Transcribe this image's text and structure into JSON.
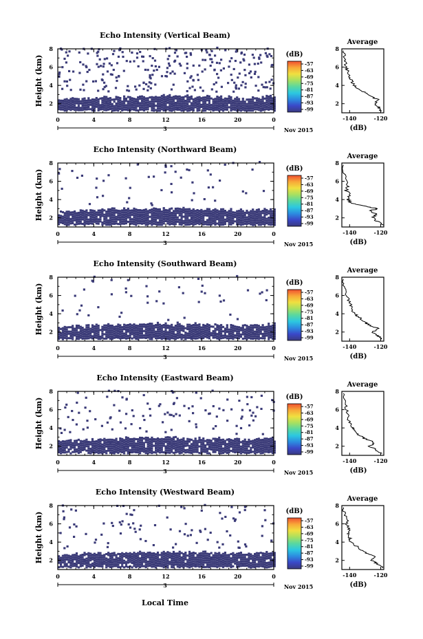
{
  "figure": {
    "xlabel": "Local Time",
    "date_label": "Nov 2015",
    "x_ticks": [
      "0",
      "4",
      "8",
      "12",
      "16",
      "20",
      "0"
    ],
    "day_label": "3",
    "y_ticks": [
      "2",
      "4",
      "6",
      "8"
    ],
    "cb_ticks": [
      "-57",
      "-63",
      "-69",
      "-75",
      "-81",
      "-87",
      "-93",
      "-99"
    ],
    "avg_x_ticks": [
      "-140",
      "-120"
    ],
    "colors": {
      "echo": "#3b3b78",
      "colorbar": [
        "#3a3a80",
        "#3a48c8",
        "#2c8ce0",
        "#2cc8e0",
        "#5ad8a0",
        "#a8e060",
        "#f0e040",
        "#f8a838",
        "#f05030"
      ]
    }
  },
  "chart_data": [
    {
      "type": "heatmap",
      "title": "Echo Intensity (Vertical Beam)",
      "ylabel": "Height (km)",
      "xlim": [
        0,
        24
      ],
      "ylim": [
        1,
        8
      ],
      "colorbar_label": "(dB)",
      "colorbar_range": [
        -99,
        -57
      ],
      "dense_echo_layer_km": [
        1.3,
        2.5
      ],
      "average_profile": {
        "title": "Average",
        "xlabel": "(dB)",
        "xlim": [
          -145,
          -118
        ],
        "ylim": [
          1,
          8
        ],
        "x": [
          -120,
          -121,
          -124,
          -121,
          -127,
          -130,
          -134,
          -137,
          -139,
          -140,
          -141,
          -142,
          -143,
          -144
        ],
        "y": [
          1.2,
          1.6,
          2.0,
          2.4,
          2.8,
          3.2,
          3.6,
          4.0,
          4.5,
          5.0,
          5.5,
          6.0,
          6.8,
          7.8
        ]
      }
    },
    {
      "type": "heatmap",
      "title": "Echo Intensity (Northward Beam)",
      "ylabel": "Height (km)",
      "xlim": [
        0,
        24
      ],
      "ylim": [
        1,
        8
      ],
      "colorbar_label": "(dB)",
      "colorbar_range": [
        -99,
        -57
      ],
      "dense_echo_layer_km": [
        1.3,
        2.7
      ],
      "average_profile": {
        "title": "Average",
        "xlabel": "(dB)",
        "xlim": [
          -145,
          -118
        ],
        "ylim": [
          1,
          8
        ],
        "x": [
          -119,
          -122,
          -125,
          -123,
          -127,
          -121,
          -128,
          -139,
          -141,
          -140,
          -142,
          -141,
          -143,
          -144
        ],
        "y": [
          1.2,
          1.6,
          2.0,
          2.4,
          2.8,
          3.0,
          3.2,
          3.6,
          4.0,
          4.5,
          5.0,
          5.5,
          6.5,
          7.8
        ]
      }
    },
    {
      "type": "heatmap",
      "title": "Echo Intensity (Southward Beam)",
      "ylabel": "Height (km)",
      "xlim": [
        0,
        24
      ],
      "ylim": [
        1,
        8
      ],
      "colorbar_label": "(dB)",
      "colorbar_range": [
        -99,
        -57
      ],
      "dense_echo_layer_km": [
        1.3,
        2.6
      ],
      "average_profile": {
        "title": "Average",
        "xlabel": "(dB)",
        "xlim": [
          -145,
          -118
        ],
        "ylim": [
          1,
          8
        ],
        "x": [
          -119,
          -122,
          -125,
          -122,
          -128,
          -131,
          -134,
          -137,
          -139,
          -140,
          -142,
          -143,
          -144
        ],
        "y": [
          1.2,
          1.6,
          2.0,
          2.4,
          2.8,
          3.2,
          3.6,
          4.0,
          4.6,
          5.2,
          6.0,
          6.8,
          7.8
        ]
      }
    },
    {
      "type": "heatmap",
      "title": "Echo Intensity (Eastward Beam)",
      "ylabel": "Height (km)",
      "xlim": [
        0,
        24
      ],
      "ylim": [
        1,
        8
      ],
      "colorbar_label": "(dB)",
      "colorbar_range": [
        -99,
        -57
      ],
      "dense_echo_layer_km": [
        1.3,
        2.6
      ],
      "average_profile": {
        "title": "Average",
        "xlabel": "(dB)",
        "xlim": [
          -145,
          -118
        ],
        "ylim": [
          1,
          8
        ],
        "x": [
          -119,
          -123,
          -127,
          -124,
          -130,
          -134,
          -136,
          -138,
          -140,
          -141,
          -142,
          -143,
          -144
        ],
        "y": [
          1.2,
          1.6,
          2.0,
          2.4,
          2.8,
          3.2,
          3.6,
          4.0,
          4.6,
          5.2,
          6.0,
          6.8,
          7.8
        ]
      }
    },
    {
      "type": "heatmap",
      "title": "Echo Intensity (Westward Beam)",
      "ylabel": "Height (km)",
      "xlim": [
        0,
        24
      ],
      "ylim": [
        1,
        8
      ],
      "colorbar_label": "(dB)",
      "colorbar_range": [
        -99,
        -57
      ],
      "dense_echo_layer_km": [
        1.3,
        2.6
      ],
      "average_profile": {
        "title": "Average",
        "xlabel": "(dB)",
        "xlim": [
          -145,
          -118
        ],
        "ylim": [
          1,
          8
        ],
        "x": [
          -119,
          -122,
          -126,
          -123,
          -129,
          -133,
          -136,
          -139,
          -140,
          -141,
          -140,
          -142,
          -141,
          -143,
          -144
        ],
        "y": [
          1.2,
          1.6,
          2.0,
          2.4,
          2.8,
          3.2,
          3.6,
          4.0,
          4.5,
          5.0,
          5.5,
          6.0,
          6.5,
          7.0,
          7.8
        ]
      }
    }
  ]
}
